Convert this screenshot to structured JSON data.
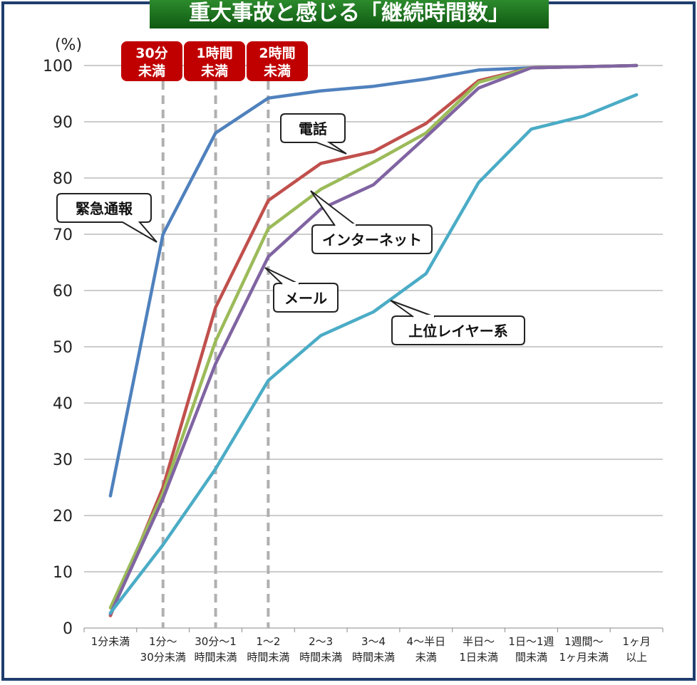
{
  "title": "重大事故と感じる「継続時間数」",
  "ylabel": "(%)",
  "threshold_labels": [
    {
      "line1": "30分",
      "line2": "未満"
    },
    {
      "line1": "1時間",
      "line2": "未満"
    },
    {
      "line1": "2時間",
      "line2": "未満"
    }
  ],
  "callouts": {
    "phone": "電話",
    "emergency": "緊急通報",
    "internet": "インターネット",
    "mail": "メール",
    "upper_layer": "上位レイヤー系"
  },
  "chart_data": {
    "type": "line",
    "ylim": [
      0,
      100
    ],
    "yticks": [
      0,
      10,
      20,
      30,
      40,
      50,
      60,
      70,
      80,
      90,
      100
    ],
    "grid": true,
    "categories": [
      {
        "line1": "1分未満",
        "line2": ""
      },
      {
        "line1": "1分～",
        "line2": "30分未満"
      },
      {
        "line1": "30分～1",
        "line2": "時間未満"
      },
      {
        "line1": "1～2",
        "line2": "時間未満"
      },
      {
        "line1": "2～3",
        "line2": "時間未満"
      },
      {
        "line1": "3～4",
        "line2": "時間未満"
      },
      {
        "line1": "4～半日",
        "line2": "未満"
      },
      {
        "line1": "半日～",
        "line2": "1日未満"
      },
      {
        "line1": "1日～1週",
        "line2": "間未満"
      },
      {
        "line1": "1週間～",
        "line2": "1ヶ月未満"
      },
      {
        "line1": "1ヶ月",
        "line2": "以上"
      }
    ],
    "thresholds_at_index": [
      1,
      2,
      3
    ],
    "series": [
      {
        "name": "緊急通報",
        "color": "#4f81bd",
        "values": [
          23.5,
          70,
          88,
          94.2,
          95.5,
          96.3,
          97.6,
          99.2,
          99.6,
          99.8,
          100
        ]
      },
      {
        "name": "電話",
        "color": "#c0504d",
        "values": [
          2.2,
          25,
          57,
          76,
          82.6,
          84.7,
          89.7,
          97.3,
          99.6,
          99.8,
          100
        ]
      },
      {
        "name": "インターネット",
        "color": "#9bbb59",
        "values": [
          3.6,
          24,
          51,
          71,
          78,
          82.8,
          88,
          97,
          99.6,
          99.8,
          100
        ]
      },
      {
        "name": "メール",
        "color": "#8064a2",
        "values": [
          2.5,
          23,
          47,
          66,
          74.5,
          78.8,
          87.3,
          96,
          99.6,
          99.8,
          100
        ]
      },
      {
        "name": "上位レイヤー系",
        "color": "#4bacc6",
        "values": [
          2.7,
          14.8,
          28.3,
          44,
          52,
          56.2,
          63,
          79.2,
          88.7,
          91,
          94.8
        ]
      }
    ]
  }
}
